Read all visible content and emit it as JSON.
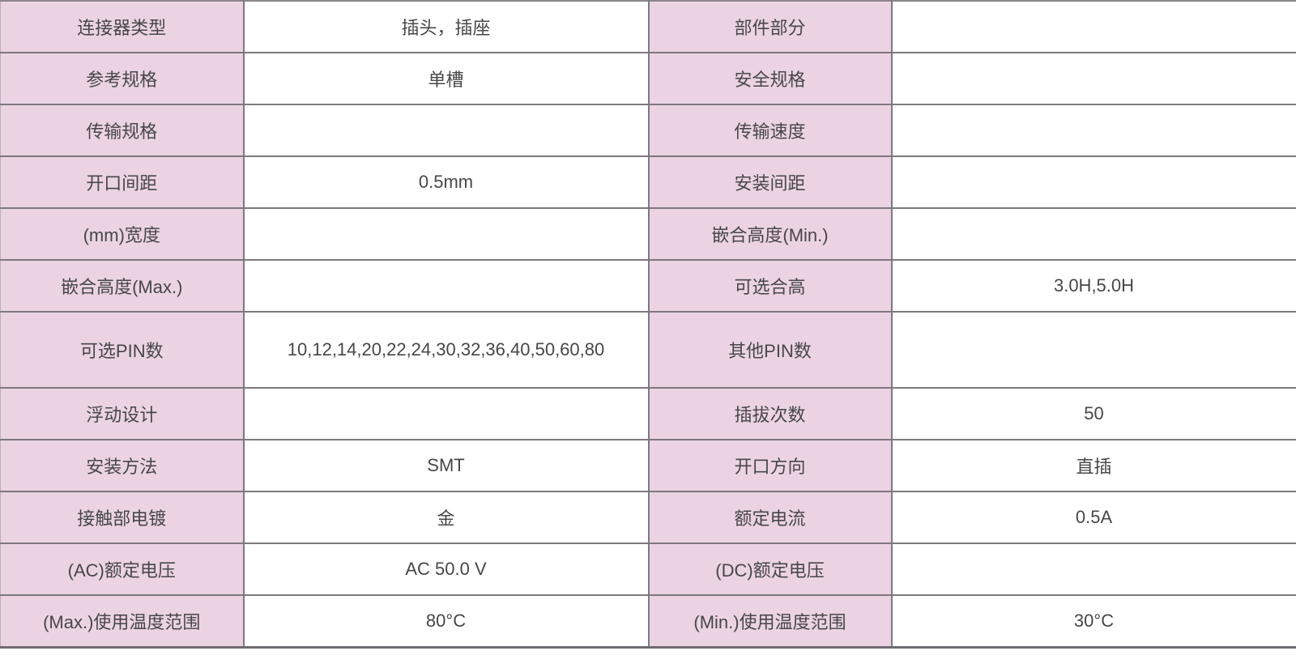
{
  "table": {
    "description": "connector-specification-table",
    "colors": {
      "label_bg": "#ebd3e4",
      "value_bg": "#ffffff",
      "border": "#7d787e",
      "text": "#474749"
    },
    "rows": [
      {
        "label1": "连接器类型",
        "value1": "插头，插座",
        "label2": "部件部分",
        "value2": ""
      },
      {
        "label1": "参考规格",
        "value1": "单槽",
        "label2": "安全规格",
        "value2": ""
      },
      {
        "label1": "传输规格",
        "value1": "",
        "label2": "传输速度",
        "value2": ""
      },
      {
        "label1": "开口间距",
        "value1": "0.5mm",
        "label2": "安装间距",
        "value2": ""
      },
      {
        "label1": "(mm)宽度",
        "value1": "",
        "label2": "嵌合高度(Min.)",
        "value2": ""
      },
      {
        "label1": "嵌合高度(Max.)",
        "value1": "",
        "label2": "可选合高",
        "value2": "3.0H,5.0H"
      },
      {
        "label1": "可选PIN数",
        "value1": "10,12,14,20,22,24,30,32,36,40,50,60,80",
        "label2": "其他PIN数",
        "value2": ""
      },
      {
        "label1": "浮动设计",
        "value1": "",
        "label2": "插拔次数",
        "value2": "50"
      },
      {
        "label1": "安装方法",
        "value1": "SMT",
        "label2": "开口方向",
        "value2": "直插"
      },
      {
        "label1": "接触部电镀",
        "value1": "金",
        "label2": "额定电流",
        "value2": "0.5A"
      },
      {
        "label1": "(AC)额定电压",
        "value1": "AC 50.0 V",
        "label2": "(DC)额定电压",
        "value2": ""
      },
      {
        "label1": "(Max.)使用温度范围",
        "value1": "80°C",
        "label2": "(Min.)使用温度范围",
        "value2": "30°C"
      }
    ]
  }
}
